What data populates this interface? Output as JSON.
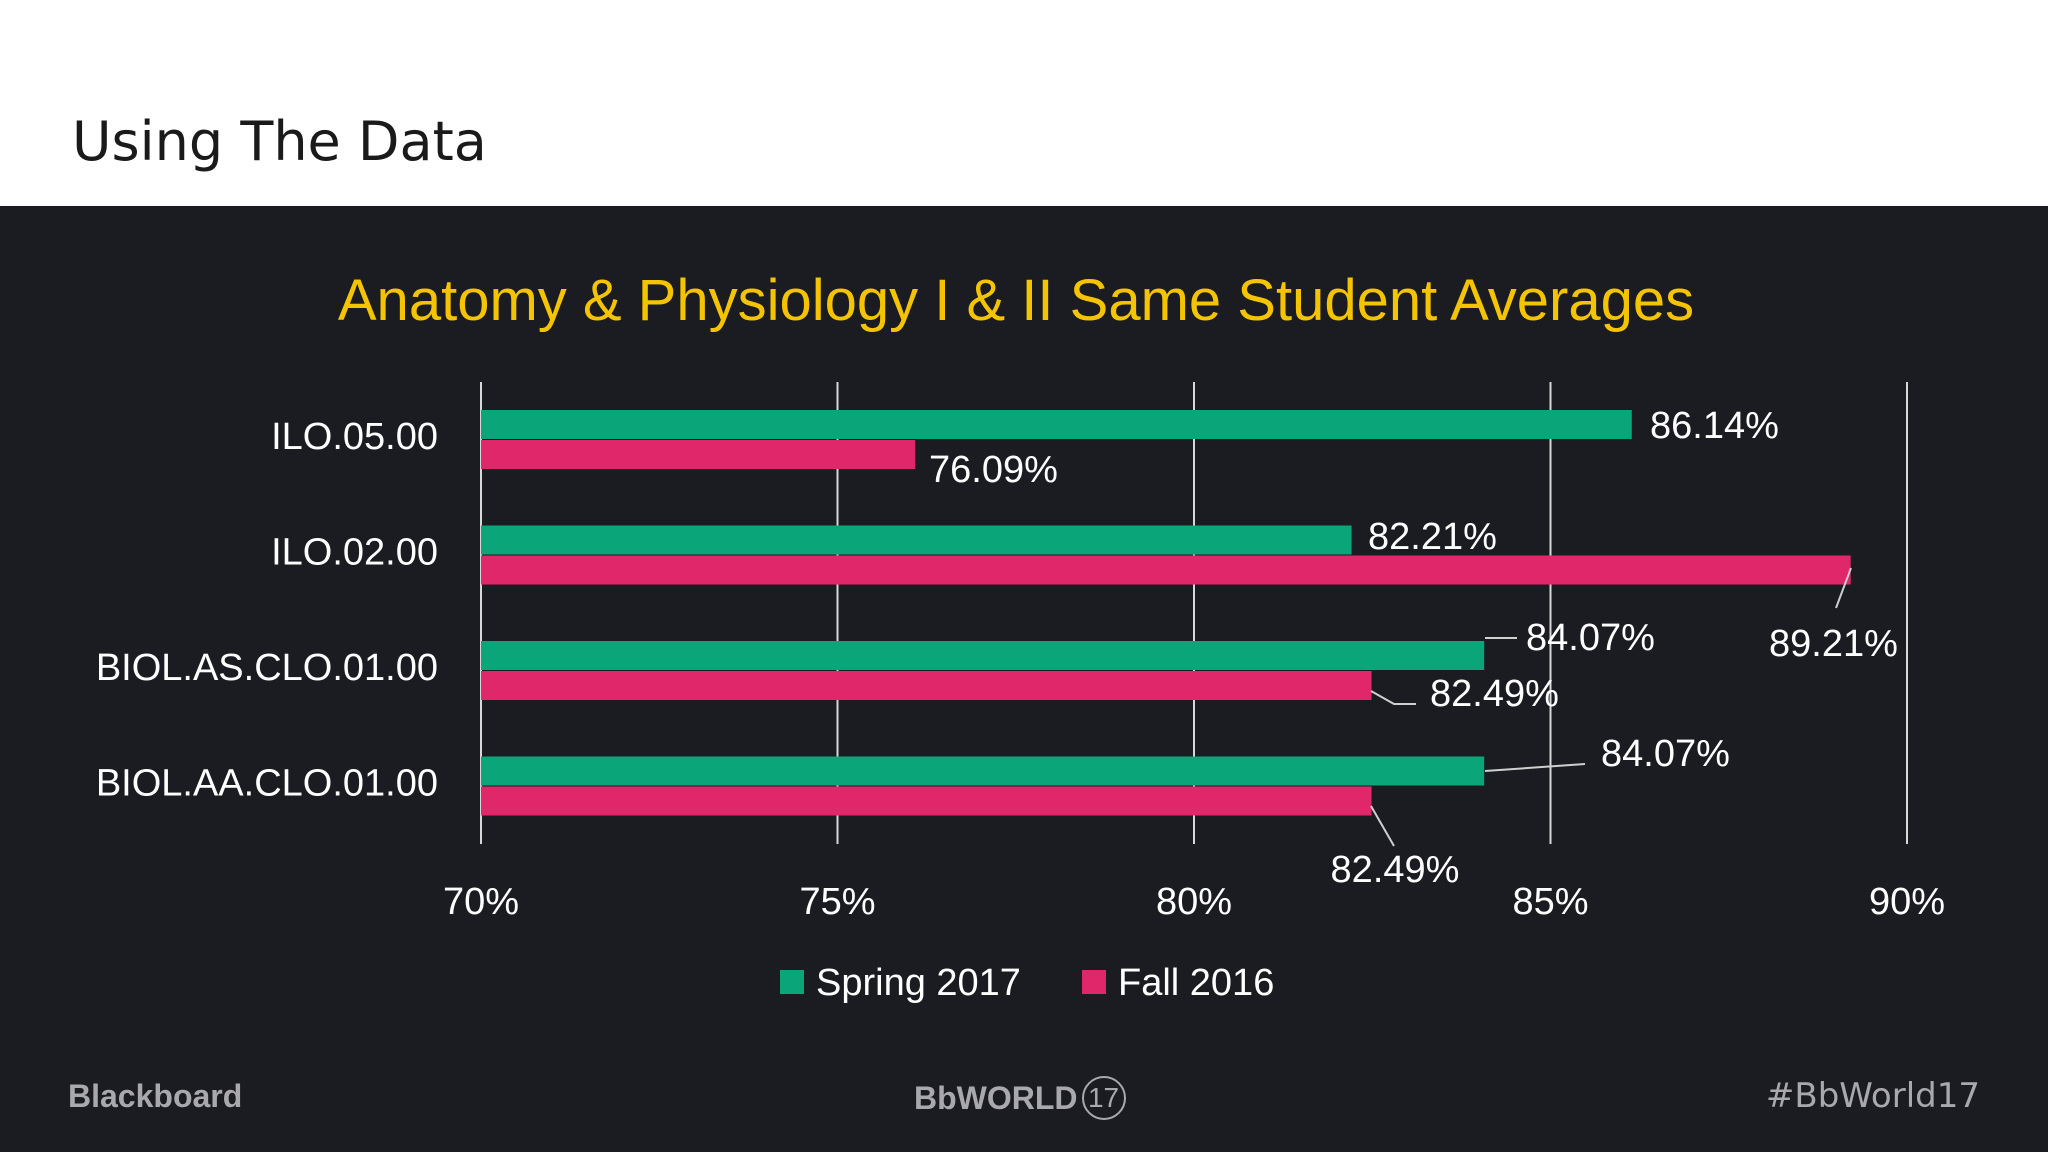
{
  "slide": {
    "title": "Using The Data"
  },
  "footer": {
    "brand": "Blackboard",
    "event_name": "BbWORLD",
    "event_badge": "17",
    "hashtag": "#BbWorld17"
  },
  "colors": {
    "background": "#1b1c22",
    "title_band": "#ffffff",
    "chart_title": "#f5c400",
    "spring": "#0aa67a",
    "fall": "#e0276a",
    "text": "#ffffff",
    "footer_text": "#a9a9ad"
  },
  "chart_data": {
    "type": "bar",
    "orientation": "horizontal",
    "title": "Anatomy & Physiology I & II Same Student Averages",
    "categories": [
      "ILO.05.00",
      "ILO.02.00",
      "BIOL.AS.CLO.01.00",
      "BIOL.AA.CLO.01.00"
    ],
    "series": [
      {
        "name": "Spring 2017",
        "color": "#0aa67a",
        "values": [
          86.14,
          82.21,
          84.07,
          84.07
        ],
        "labels": [
          "86.14%",
          "82.21%",
          "84.07%",
          "84.07%"
        ]
      },
      {
        "name": "Fall 2016",
        "color": "#e0276a",
        "values": [
          76.09,
          89.21,
          82.49,
          82.49
        ],
        "labels": [
          "76.09%",
          "89.21%",
          "82.49%",
          "82.49%"
        ]
      }
    ],
    "xlim": [
      70,
      90
    ],
    "xticks": [
      "70%",
      "75%",
      "80%",
      "85%",
      "90%"
    ],
    "xtick_values": [
      70,
      75,
      80,
      85,
      90
    ],
    "grid": true,
    "legend": "bottom"
  }
}
